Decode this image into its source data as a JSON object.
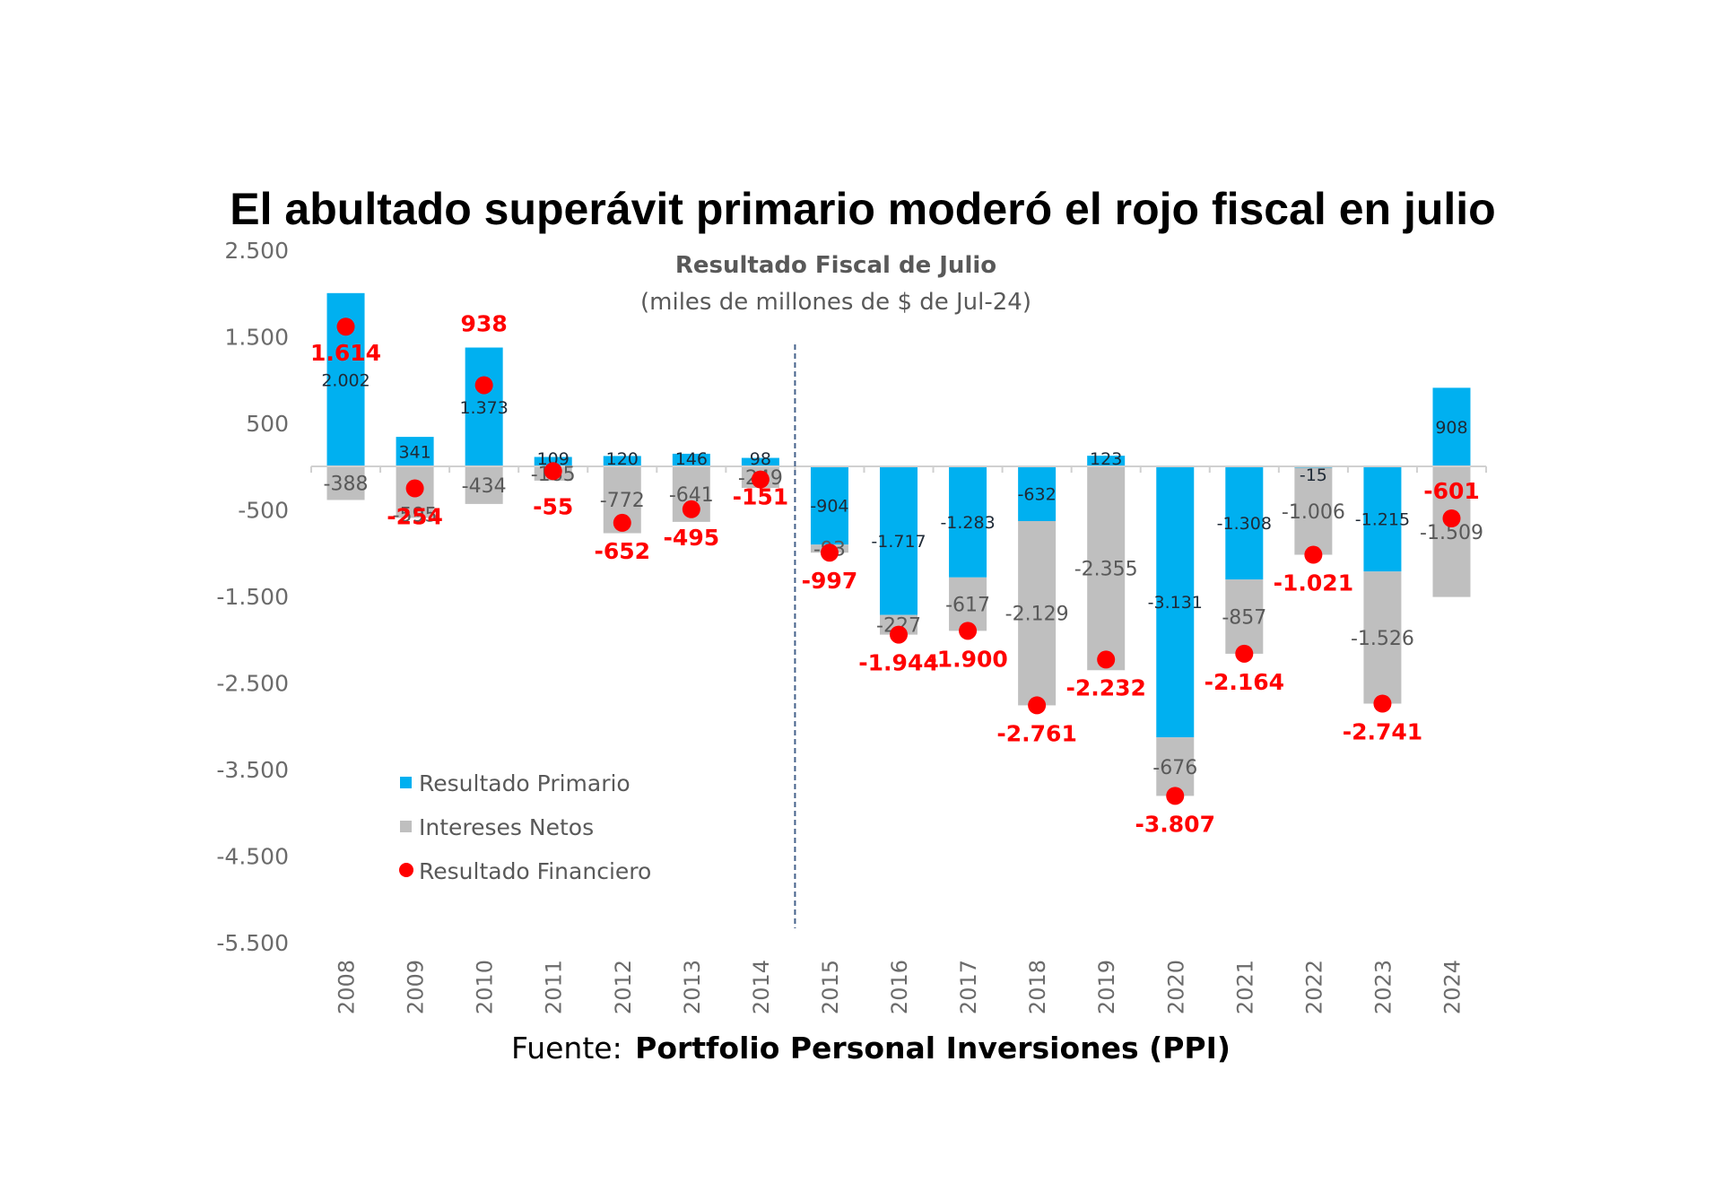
{
  "chart_data": {
    "type": "bar",
    "title": "El abultado superávit primario moderó el rojo fiscal en julio",
    "subtitle": "Resultado Fiscal de Julio",
    "subtitle2": "(miles de millones de $ de Jul-24)",
    "xlabel": "",
    "ylabel": "",
    "ylim": [
      -5500,
      2500
    ],
    "yticks": [
      2500,
      1500,
      500,
      -500,
      -1500,
      -2500,
      -3500,
      -4500,
      -5500
    ],
    "ytick_labels": [
      "2.500",
      "1.500",
      "500",
      "-500",
      "-1.500",
      "-2.500",
      "-3.500",
      "-4.500",
      "-5.500"
    ],
    "categories": [
      "2008",
      "2009",
      "2010",
      "2011",
      "2012",
      "2013",
      "2014",
      "2015",
      "2016",
      "2017",
      "2018",
      "2019",
      "2020",
      "2021",
      "2022",
      "2023",
      "2024"
    ],
    "series": [
      {
        "name": "Resultado Primario",
        "kind": "stacked-bar",
        "color": "#00b0f0",
        "values": [
          2002,
          341,
          1373,
          109,
          120,
          146,
          98,
          -904,
          -1717,
          -1283,
          -632,
          123,
          -3131,
          -1308,
          -15,
          -1215,
          908
        ],
        "labels": [
          "2.002",
          "341",
          "1.373",
          "109",
          "120",
          "146",
          "98",
          "-904",
          "-1.717",
          "-1.283",
          "-632",
          "123",
          "-3.131",
          "-1.308",
          "-15",
          "-1.215",
          "908"
        ]
      },
      {
        "name": "Intereses Netos",
        "kind": "stacked-bar",
        "color": "#bfbfbf",
        "values": [
          -388,
          -595,
          -434,
          -165,
          -772,
          -641,
          -249,
          -93,
          -227,
          -617,
          -2129,
          -2355,
          -676,
          -857,
          -1006,
          -1526,
          -1509
        ],
        "labels": [
          "-388",
          "-595",
          "-434",
          "-165",
          "-772",
          "-641",
          "-249",
          "-93",
          "-227",
          "-617",
          "-2.129",
          "-2.355",
          "-676",
          "-857",
          "-1.006",
          "-1.526",
          "-1.509"
        ]
      },
      {
        "name": "Resultado Financiero",
        "kind": "marker",
        "color": "#ff0000",
        "values": [
          1614,
          -254,
          938,
          -55,
          -652,
          -495,
          -151,
          -997,
          -1944,
          -1900,
          -2761,
          -2232,
          -3807,
          -2164,
          -1021,
          -2741,
          -601
        ],
        "labels": [
          "1.614",
          "-254",
          "938",
          "-55",
          "-652",
          "-495",
          "-151",
          "-997",
          "-1.944",
          "-1.900",
          "-2.761",
          "-2.232",
          "-3.807",
          "-2.164",
          "-1.021",
          "-2.741",
          "-601"
        ]
      }
    ],
    "reference_line": {
      "type": "vertical-dashed",
      "between": [
        "2014",
        "2015"
      ],
      "color": "#44618a"
    },
    "legend": {
      "position": "bottom-left",
      "entries": [
        "Resultado Primario",
        "Intereses Netos",
        "Resultado Financiero"
      ]
    },
    "grid": false,
    "source": {
      "prefix": "Fuente:",
      "name": "Portfolio Personal Inversiones (PPI)"
    }
  }
}
